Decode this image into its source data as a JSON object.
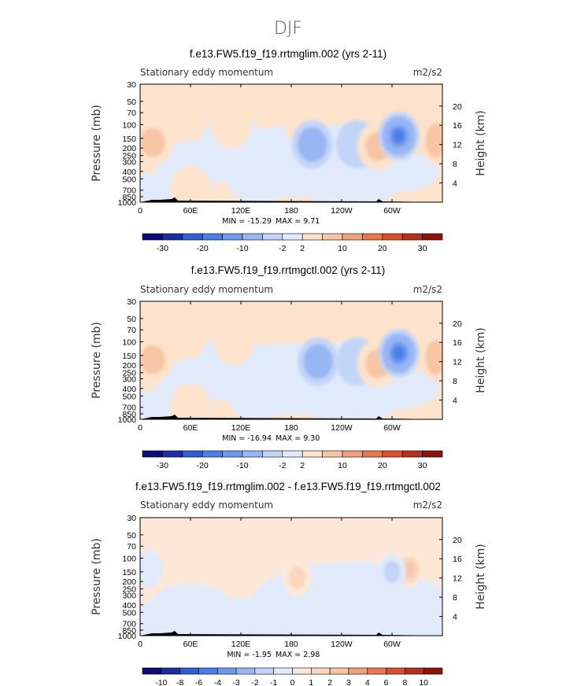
{
  "figure_title": "DJF",
  "chart_data": [
    {
      "type": "heatmap",
      "title": "f.e13.FW5.f19_f19.rrtmglim.002 (yrs 2-11)",
      "subtitle_left": "Stationary eddy momentum",
      "units": "m2/s2",
      "ylabel": "Pressure (mb)",
      "ylabel_right": "Height (km)",
      "x_ticks": [
        "0",
        "60E",
        "120E",
        "180",
        "120W",
        "60W"
      ],
      "y_ticks": [
        "30",
        "50",
        "70",
        "100",
        "150",
        "200",
        "250",
        "300",
        "400",
        "500",
        "700",
        "850",
        "1000"
      ],
      "y2_ticks": [
        "20",
        "16",
        "12",
        "8",
        "4"
      ],
      "min_label": "MIN = -15.29",
      "max_label": "MAX = 9.71",
      "colorbar_ticks": [
        "-30",
        "-20",
        "-10",
        "-2",
        "2",
        "10",
        "20",
        "30"
      ],
      "features": [
        {
          "name": "positive",
          "lon": 15,
          "p": 170,
          "value": 6
        },
        {
          "name": "positive",
          "lon": 60,
          "p": 700,
          "value": 3
        },
        {
          "name": "positive",
          "lon": 108,
          "p": 100,
          "value": 1
        },
        {
          "name": "positive",
          "lon": 197,
          "p": 100,
          "value": 2
        },
        {
          "name": "negative",
          "lon": 205,
          "p": 180,
          "value": -8
        },
        {
          "name": "negative",
          "lon": 258,
          "p": 180,
          "value": -4
        },
        {
          "name": "positive",
          "lon": 283,
          "p": 190,
          "value": 6
        },
        {
          "name": "negative",
          "lon": 308,
          "p": 140,
          "value": -15
        },
        {
          "name": "positive",
          "lon": 352,
          "p": 160,
          "value": 8
        }
      ]
    },
    {
      "type": "heatmap",
      "title": "f.e13.FW5.f19_f19.rrtmgctl.002 (yrs 2-11)",
      "subtitle_left": "Stationary eddy momentum",
      "units": "m2/s2",
      "ylabel": "Pressure (mb)",
      "ylabel_right": "Height (km)",
      "x_ticks": [
        "0",
        "60E",
        "120E",
        "180",
        "120W",
        "60W"
      ],
      "y_ticks": [
        "30",
        "50",
        "70",
        "100",
        "150",
        "200",
        "250",
        "300",
        "400",
        "500",
        "700",
        "850",
        "1000"
      ],
      "y2_ticks": [
        "20",
        "16",
        "12",
        "8",
        "4"
      ],
      "min_label": "MIN = -16.94",
      "max_label": "MAX = 9.30",
      "colorbar_ticks": [
        "-30",
        "-20",
        "-10",
        "-2",
        "2",
        "10",
        "20",
        "30"
      ],
      "features": [
        {
          "name": "positive",
          "lon": 15,
          "p": 170,
          "value": 6
        },
        {
          "name": "positive",
          "lon": 60,
          "p": 700,
          "value": 3
        },
        {
          "name": "positive",
          "lon": 112,
          "p": 100,
          "value": 1
        },
        {
          "name": "negative",
          "lon": 212,
          "p": 180,
          "value": -8
        },
        {
          "name": "negative",
          "lon": 258,
          "p": 180,
          "value": -4
        },
        {
          "name": "positive",
          "lon": 283,
          "p": 190,
          "value": 6
        },
        {
          "name": "negative",
          "lon": 308,
          "p": 140,
          "value": -16
        },
        {
          "name": "positive",
          "lon": 352,
          "p": 160,
          "value": 8
        }
      ]
    },
    {
      "type": "heatmap",
      "title": "f.e13.FW5.f19_f19.rrtmglim.002 - f.e13.FW5.f19_f19.rrtmgctl.002",
      "subtitle_left": "Stationary eddy momentum",
      "units": "m2/s2",
      "ylabel": "Pressure (mb)",
      "ylabel_right": "Height (km)",
      "x_ticks": [
        "0",
        "60E",
        "120E",
        "180",
        "120W",
        "60W"
      ],
      "y_ticks": [
        "30",
        "50",
        "70",
        "100",
        "150",
        "200",
        "250",
        "300",
        "400",
        "500",
        "700",
        "850",
        "1000"
      ],
      "y2_ticks": [
        "20",
        "16",
        "12",
        "8",
        "4"
      ],
      "min_label": "MIN = -1.95",
      "max_label": "MAX = 2.98",
      "colorbar_ticks": [
        "-10",
        "-8",
        "-6",
        "-4",
        "-3",
        "-2",
        "-1",
        "0",
        "1",
        "2",
        "3",
        "4",
        "6",
        "8",
        "10"
      ],
      "features": [
        {
          "name": "positive",
          "lon": 187,
          "p": 180,
          "value": 1.5
        },
        {
          "name": "positive",
          "lon": 320,
          "p": 140,
          "value": 3
        },
        {
          "name": "negative",
          "lon": 300,
          "p": 150,
          "value": -1.5
        },
        {
          "name": "negative",
          "lon": 10,
          "p": 140,
          "value": -1
        }
      ]
    }
  ],
  "palette": {
    "colors": [
      "#0b0b7a",
      "#1a2ea8",
      "#2f5ed6",
      "#4a7ee8",
      "#6f98ef",
      "#98b6f4",
      "#c2d4f8",
      "#e0eafb",
      "#fde3cc",
      "#f7c4a4",
      "#f0a07c",
      "#e9764f",
      "#d9502c",
      "#b8301b",
      "#8c1409"
    ],
    "diff_colors": [
      "#0b0b7a",
      "#1a2ea8",
      "#2f5ed6",
      "#4a7ee8",
      "#6f98ef",
      "#98b6f4",
      "#c2d4f8",
      "#e0eafb",
      "#fde8d8",
      "#fbd5bc",
      "#f7c4a4",
      "#f0a07c",
      "#e9764f",
      "#d9502c",
      "#b8301b",
      "#8c1409"
    ],
    "land": "#000000"
  }
}
